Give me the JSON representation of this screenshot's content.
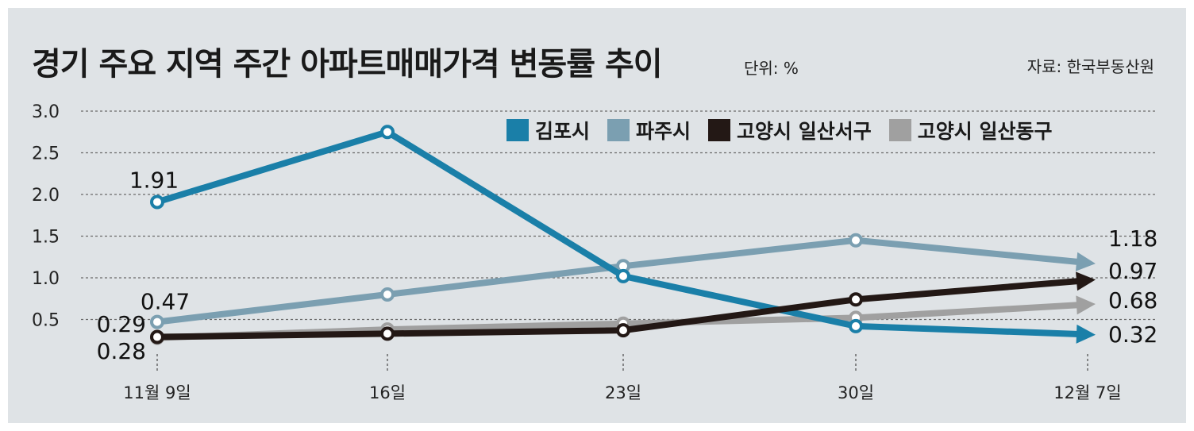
{
  "header": {
    "title": "경기 주요 지역 주간 아파트매매가격 변동률 추이",
    "unit": "단위: %",
    "source": "자료: 한국부동산원"
  },
  "chart_data": {
    "type": "line",
    "title": "경기 주요 지역 주간 아파트매매가격 변동률 추이",
    "unit": "%",
    "categories": [
      "11월 9일",
      "16일",
      "23일",
      "30일",
      "12월 7일"
    ],
    "y_ticks": [
      "3.0",
      "2.5",
      "2.0",
      "1.5",
      "1.0",
      "0.5"
    ],
    "ylim": [
      0,
      3.0
    ],
    "grid": "horizontal dotted",
    "legend_position": "top-right",
    "series": [
      {
        "name": "김포시",
        "color": "#1a7fa8",
        "values": [
          1.91,
          2.75,
          1.02,
          0.42,
          0.32
        ]
      },
      {
        "name": "파주시",
        "color": "#7b9fb1",
        "values": [
          0.47,
          0.8,
          1.14,
          1.45,
          1.18
        ]
      },
      {
        "name": "고양시 일산서구",
        "color": "#231815",
        "values": [
          0.29,
          0.33,
          0.37,
          0.74,
          0.97
        ]
      },
      {
        "name": "고양시 일산동구",
        "color": "#a0a0a0",
        "values": [
          0.28,
          0.38,
          0.45,
          0.52,
          0.68
        ]
      }
    ],
    "data_labels": [
      {
        "text": "1.91",
        "series": 0,
        "index": 0,
        "anchor": "above-left"
      },
      {
        "text": "0.47",
        "series": 1,
        "index": 0,
        "anchor": "above"
      },
      {
        "text": "0.29",
        "series": 2,
        "index": 0,
        "anchor": "left"
      },
      {
        "text": "0.28",
        "series": 3,
        "index": 0,
        "anchor": "below-left"
      },
      {
        "text": "1.18",
        "series": 1,
        "index": 4,
        "anchor": "right-above"
      },
      {
        "text": "0.97",
        "series": 2,
        "index": 4,
        "anchor": "right"
      },
      {
        "text": "0.68",
        "series": 3,
        "index": 4,
        "anchor": "right"
      },
      {
        "text": "0.32",
        "series": 0,
        "index": 4,
        "anchor": "right"
      }
    ]
  }
}
